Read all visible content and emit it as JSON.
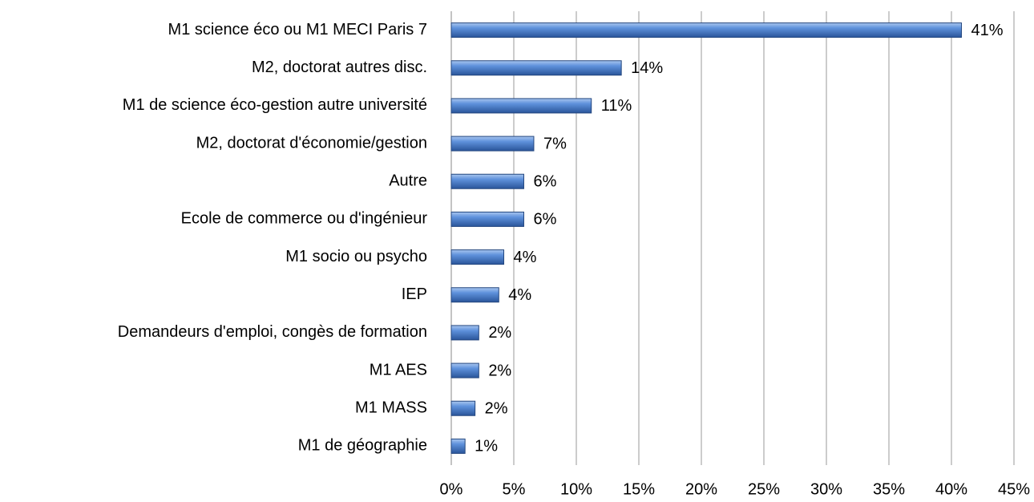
{
  "chart_data": {
    "type": "bar",
    "orientation": "horizontal",
    "categories": [
      "M1 science éco ou M1 MECI Paris 7",
      "M2, doctorat autres disc.",
      "M1 de science éco-gestion autre université",
      "M2, doctorat d'économie/gestion",
      "Autre",
      "Ecole de commerce ou d'ingénieur",
      "M1 socio ou psycho",
      "IEP",
      "Demandeurs d'emploi, congès de formation",
      "M1 AES",
      "M1 MASS",
      "M1 de géographie"
    ],
    "values": [
      40.8,
      13.6,
      11.2,
      6.6,
      5.8,
      5.8,
      4.2,
      3.8,
      2.2,
      2.2,
      1.9,
      1.1
    ],
    "value_labels": [
      "41%",
      "14%",
      "11%",
      "7%",
      "6%",
      "6%",
      "4%",
      "4%",
      "2%",
      "2%",
      "2%",
      "1%"
    ],
    "color": "#4a7fd0",
    "xlim": [
      0,
      45
    ],
    "xticks": [
      {
        "value": 0,
        "label": "0%"
      },
      {
        "value": 5,
        "label": "5%"
      },
      {
        "value": 10,
        "label": "10%"
      },
      {
        "value": 15,
        "label": "15%"
      },
      {
        "value": 20,
        "label": "20%"
      },
      {
        "value": 25,
        "label": "25%"
      },
      {
        "value": 30,
        "label": "30%"
      },
      {
        "value": 35,
        "label": "35%"
      },
      {
        "value": 40,
        "label": "40%"
      },
      {
        "value": 45,
        "label": "45%"
      }
    ],
    "grid": true
  }
}
